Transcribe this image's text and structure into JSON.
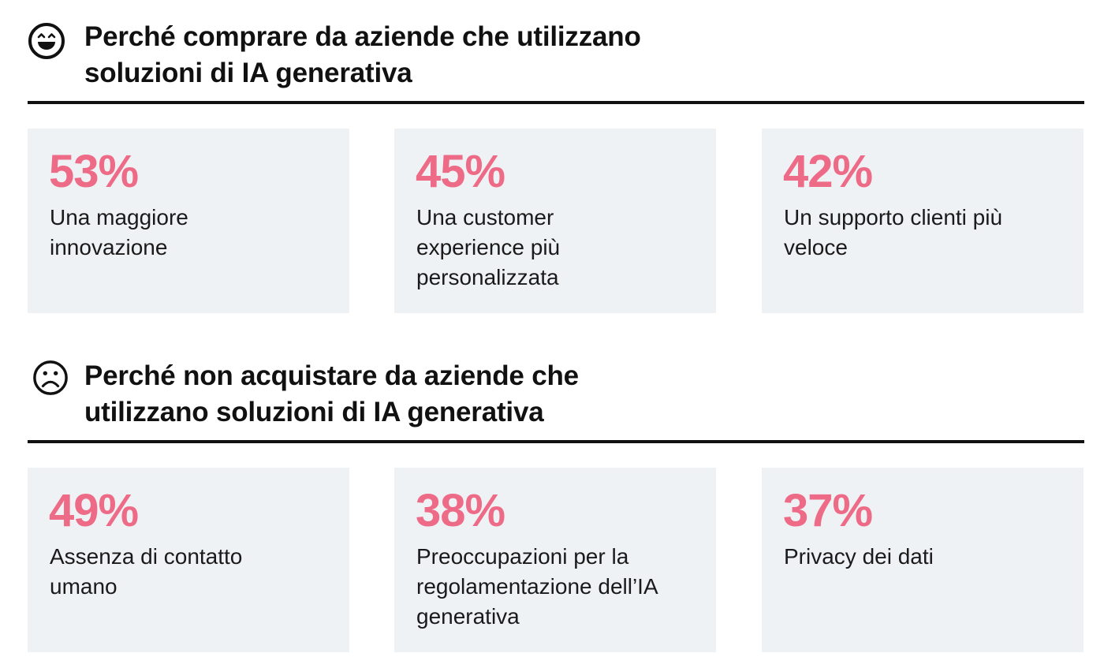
{
  "sections": [
    {
      "icon": "smiling-face-icon",
      "title_line1": "Perché comprare da aziende che utilizzano",
      "title_line2": "soluzioni di IA generativa",
      "cards": [
        {
          "value": "53%",
          "label": "Una maggiore innovazione"
        },
        {
          "value": "45%",
          "label": "Una customer experience più personalizzata"
        },
        {
          "value": "42%",
          "label": "Un supporto clienti più veloce"
        }
      ]
    },
    {
      "icon": "frowning-face-icon",
      "title_line1": "Perché non acquistare da aziende che",
      "title_line2": "utilizzano soluzioni di IA generativa",
      "cards": [
        {
          "value": "49%",
          "label": "Assenza di contatto umano"
        },
        {
          "value": "38%",
          "label": "Preoccupazioni per la regolamentazione dell’IA generativa"
        },
        {
          "value": "37%",
          "label": "Privacy dei dati"
        }
      ]
    }
  ],
  "colors": {
    "accent": "#ee6b88",
    "card_bg": "#eff2f5",
    "text": "#111111"
  }
}
